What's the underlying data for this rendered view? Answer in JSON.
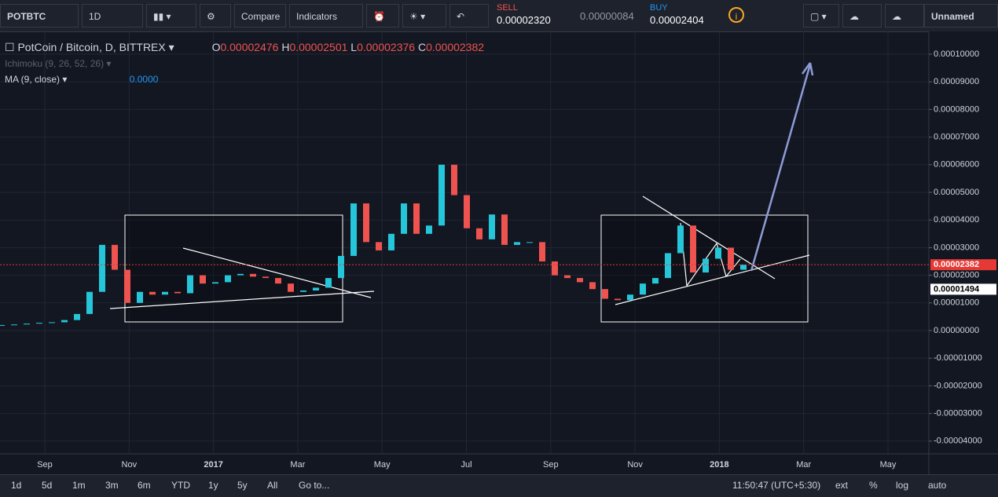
{
  "toolbar": {
    "symbol": "POTBTC",
    "interval": "1D",
    "compare": "Compare",
    "indicators": "Indicators",
    "sell_label": "SELL",
    "sell_price": "0.00002320",
    "spread": "0.00000084",
    "buy_label": "BUY",
    "buy_price": "0.00002404",
    "layout_name": "Unnamed"
  },
  "legend": {
    "title": "PotCoin / Bitcoin, D, BITTREX",
    "o_label": "O",
    "o_value": "0.00002476",
    "h_label": "H",
    "h_value": "0.00002501",
    "l_label": "L",
    "l_value": "0.00002376",
    "c_label": "C",
    "c_value": "0.00002382",
    "ichimoku": "Ichimoku (9, 26, 52, 26)",
    "ma": "MA (9, close)",
    "ma_value": "0.0000"
  },
  "chart_data": {
    "type": "candlestick",
    "up_color": "#26c6da",
    "down_color": "#ef5350",
    "values": [
      2e-06,
      2.2e-06,
      2.5e-06,
      2.8e-06,
      3e-06,
      3.8e-06,
      6e-06,
      1.4e-05,
      3.1e-05,
      2.2e-05,
      1e-05,
      1.4e-05,
      1.3e-05,
      1.4e-05,
      1.35e-05,
      2e-05,
      1.7e-05,
      1.75e-05,
      2e-05,
      2.05e-05,
      1.95e-05,
      1.9e-05,
      1.7e-05,
      1.4e-05,
      1.45e-05,
      1.55e-05,
      1.9e-05,
      2.7e-05,
      4.6e-05,
      3.2e-05,
      2.9e-05,
      3.5e-05,
      4.6e-05,
      3.5e-05,
      3.8e-05,
      6e-05,
      4.9e-05,
      3.7e-05,
      3.3e-05,
      4.2e-05,
      3.1e-05,
      3.2e-05,
      3.2e-05,
      2.5e-05,
      2e-05,
      1.9e-05,
      1.75e-05,
      1.5e-05,
      1.15e-05,
      1.1e-05,
      1.3e-05,
      1.7e-05,
      1.9e-05,
      2.8e-05,
      3.8e-05,
      2.1e-05,
      2.6e-05,
      3e-05,
      2.2e-05,
      2.38e-05
    ],
    "ylim": [
      -4.46e-05,
      0.0001071
    ],
    "yticks": [
      {
        "value": 0.0001,
        "label": "0.00010000"
      },
      {
        "value": 9e-05,
        "label": "0.00009000"
      },
      {
        "value": 8e-05,
        "label": "0.00008000"
      },
      {
        "value": 7e-05,
        "label": "0.00007000"
      },
      {
        "value": 6e-05,
        "label": "0.00006000"
      },
      {
        "value": 5e-05,
        "label": "0.00005000"
      },
      {
        "value": 4e-05,
        "label": "0.00004000"
      },
      {
        "value": 3e-05,
        "label": "0.00003000"
      },
      {
        "value": 2e-05,
        "label": "0.00002000"
      },
      {
        "value": 1e-05,
        "label": "0.00001000"
      },
      {
        "value": 0,
        "label": "0.00000000"
      },
      {
        "value": -1e-05,
        "label": "-0.00001000"
      },
      {
        "value": -2e-05,
        "label": "-0.00002000"
      },
      {
        "value": -3e-05,
        "label": "-0.00003000"
      },
      {
        "value": -4e-05,
        "label": "-0.00004000"
      }
    ],
    "price_tags": [
      {
        "value": 2.382e-05,
        "label": "0.00002382",
        "color": "#e53935"
      },
      {
        "value": 1.494e-05,
        "label": "0.00001494",
        "color": "#ffffff"
      }
    ],
    "grid": true
  },
  "time_axis": {
    "labels": [
      "Sep",
      "Nov",
      "2017",
      "Mar",
      "May",
      "Jul",
      "Sep",
      "Nov",
      "2018",
      "Mar",
      "May"
    ]
  },
  "bottom_bar": {
    "ranges": [
      "1d",
      "5d",
      "1m",
      "3m",
      "6m",
      "YTD",
      "1y",
      "5y",
      "All"
    ],
    "goto": "Go to...",
    "clock": "11:50:47 (UTC+5:30)",
    "options": [
      "ext",
      "%",
      "log",
      "auto"
    ]
  }
}
